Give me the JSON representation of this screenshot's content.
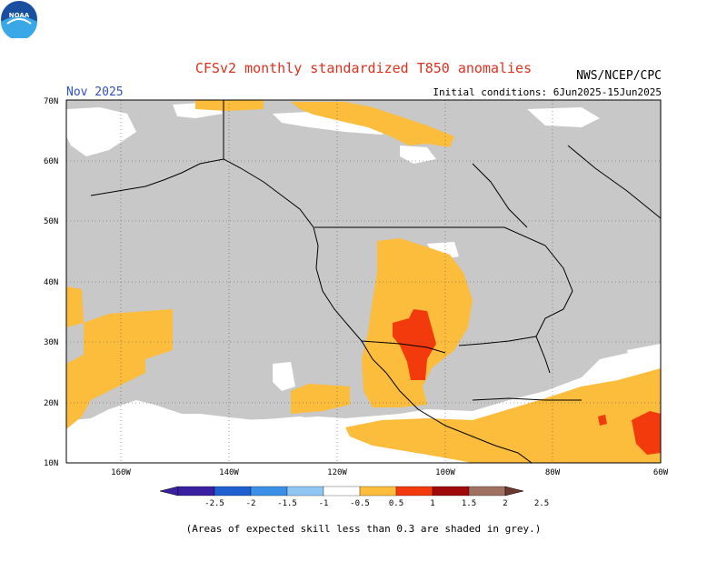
{
  "title": "CFSv2 monthly standardized T850 anomalies",
  "month": "Nov 2025",
  "initial_conditions": "Initial conditions: 6Jun2025-15Jun2025",
  "agency": "NWS/NCEP/CPC",
  "logo_text": "NOAA",
  "latitude_labels": [
    "70N",
    "60N",
    "50N",
    "40N",
    "30N",
    "20N",
    "10N"
  ],
  "longitude_labels": [
    "160W",
    "140W",
    "120W",
    "100W",
    "80W",
    "60W"
  ],
  "colorbar": {
    "ticks": [
      "-2.5",
      "-2",
      "-1.5",
      "-1",
      "-0.5",
      "0.5",
      "1",
      "1.5",
      "2",
      "2.5"
    ],
    "colors": [
      "#3a1fa0",
      "#1f5fd0",
      "#3a8fe6",
      "#8fc6f2",
      "#ffffff",
      "#fcbc3c",
      "#f23a0c",
      "#a00a0a",
      "#a07060",
      "#6a3a30"
    ]
  },
  "footnote": "(Areas of expected skill less than 0.3 are shaded in grey.)",
  "colors": {
    "low_skill_grey": "#c8c8c8",
    "positive_anomaly_orange": "#fcbc3c",
    "positive_anomaly_red": "#f23a0c",
    "title_red": "#e0301e",
    "month_blue": "#3050c8"
  }
}
